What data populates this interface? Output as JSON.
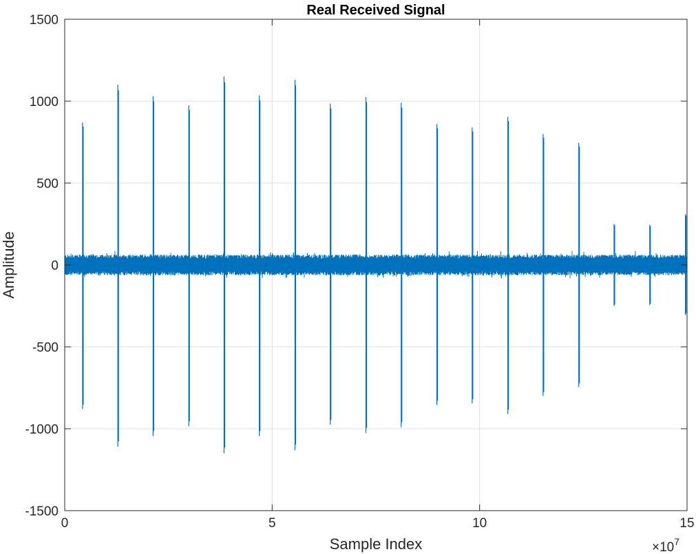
{
  "chart_data": {
    "type": "line",
    "title": "Real Received Signal",
    "xlabel": "Sample Index",
    "ylabel": "Amplitude",
    "xlim": [
      0,
      150000000
    ],
    "ylim": [
      -1500,
      1500
    ],
    "x_ticks": [
      0,
      50000000,
      100000000,
      150000000
    ],
    "x_tick_labels": [
      "0",
      "5",
      "10",
      "15"
    ],
    "x_exponent_label": "×10",
    "x_exponent_power": "7",
    "y_ticks": [
      -1500,
      -1000,
      -500,
      0,
      500,
      1000,
      1500
    ],
    "y_tick_labels": [
      "-1500",
      "-1000",
      "-500",
      "0",
      "500",
      "1000",
      "1500"
    ],
    "grid": true,
    "series_color": "#0072BD",
    "noise_band": {
      "upper": 55,
      "lower": -55,
      "peak": 80
    },
    "pulses": [
      {
        "x": 4300000,
        "max": 870,
        "min": -880
      },
      {
        "x": 12800000,
        "max": 1100,
        "min": -1110
      },
      {
        "x": 21300000,
        "max": 1030,
        "min": -1045
      },
      {
        "x": 29900000,
        "max": 975,
        "min": -985
      },
      {
        "x": 38400000,
        "max": 1150,
        "min": -1150
      },
      {
        "x": 46900000,
        "max": 1035,
        "min": -1045
      },
      {
        "x": 55500000,
        "max": 1130,
        "min": -1130
      },
      {
        "x": 64000000,
        "max": 985,
        "min": -975
      },
      {
        "x": 72600000,
        "max": 1025,
        "min": -1025
      },
      {
        "x": 81100000,
        "max": 990,
        "min": -990
      },
      {
        "x": 89700000,
        "max": 860,
        "min": -855
      },
      {
        "x": 98200000,
        "max": 840,
        "min": -845
      },
      {
        "x": 106800000,
        "max": 905,
        "min": -910
      },
      {
        "x": 115300000,
        "max": 800,
        "min": -800
      },
      {
        "x": 123900000,
        "max": 745,
        "min": -745
      },
      {
        "x": 132400000,
        "max": 250,
        "min": -250
      },
      {
        "x": 141000000,
        "max": 245,
        "min": -245
      },
      {
        "x": 149600000,
        "max": 310,
        "min": -305
      }
    ]
  }
}
